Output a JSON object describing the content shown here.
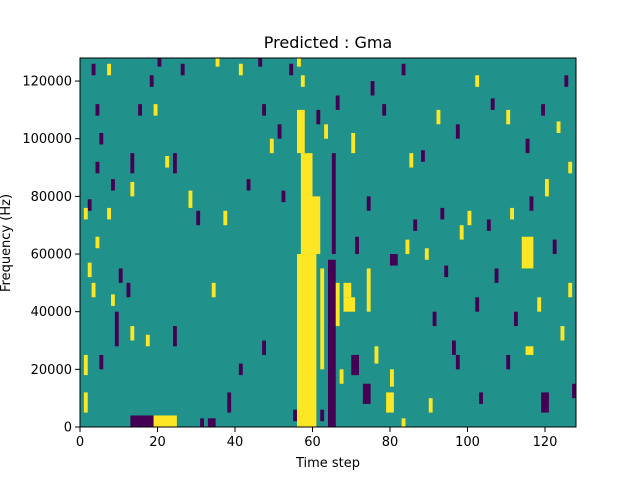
{
  "colors": {
    "background": "#21918c",
    "low": "#440154",
    "high": "#fde725"
  },
  "chart_data": {
    "type": "heatmap",
    "title": "Predicted : Gma",
    "xlabel": "Time step",
    "ylabel": "Frequency (Hz)",
    "xlim": [
      0,
      128
    ],
    "ylim": [
      0,
      128000
    ],
    "x_ticks": [
      0,
      20,
      40,
      60,
      80,
      100,
      120
    ],
    "y_ticks": [
      0,
      20000,
      40000,
      60000,
      80000,
      100000,
      120000
    ],
    "x_tick_labels": [
      "0",
      "20",
      "40",
      "60",
      "80",
      "100",
      "120"
    ],
    "y_tick_labels": [
      "0",
      "20000",
      "40000",
      "60000",
      "80000",
      "100000",
      "120000"
    ],
    "grid": false,
    "legend": "none",
    "values_legend": {
      "background": 0,
      "low": -1,
      "high": 1
    },
    "cells": [
      {
        "x0": 56,
        "x1": 61,
        "y0": 0,
        "y1": 60000,
        "value": 1
      },
      {
        "x0": 57,
        "x1": 60,
        "y0": 60000,
        "y1": 95000,
        "value": 1
      },
      {
        "x0": 56,
        "x1": 58,
        "y0": 95000,
        "y1": 110000,
        "value": 1
      },
      {
        "x0": 13,
        "x1": 19,
        "y0": 0,
        "y1": 4000,
        "value": -1
      },
      {
        "x0": 19,
        "x1": 25,
        "y0": 0,
        "y1": 4000,
        "value": 1
      },
      {
        "x0": 64,
        "x1": 66,
        "y0": 0,
        "y1": 58000,
        "value": -1
      },
      {
        "x0": 65,
        "x1": 66,
        "y0": 60000,
        "y1": 95000,
        "value": -1
      },
      {
        "x0": 60,
        "x1": 62,
        "y0": 60000,
        "y1": 80000,
        "value": 1
      },
      {
        "x0": 62,
        "x1": 63,
        "y0": 20000,
        "y1": 55000,
        "value": 1
      },
      {
        "x0": 66,
        "x1": 67,
        "y0": 35000,
        "y1": 50000,
        "value": 1
      },
      {
        "x0": 68,
        "x1": 71,
        "y0": 40000,
        "y1": 45000,
        "value": 1
      },
      {
        "x0": 68,
        "x1": 70,
        "y0": 45000,
        "y1": 50000,
        "value": 1
      },
      {
        "x0": 70,
        "x1": 72,
        "y0": 18000,
        "y1": 25000,
        "value": -1
      },
      {
        "x0": 73,
        "x1": 75,
        "y0": 8000,
        "y1": 15000,
        "value": -1
      },
      {
        "x0": 74,
        "x1": 75,
        "y0": 40000,
        "y1": 55000,
        "value": 1
      },
      {
        "x0": 79,
        "x1": 81,
        "y0": 5000,
        "y1": 12000,
        "value": 1
      },
      {
        "x0": 80,
        "x1": 82,
        "y0": 56000,
        "y1": 60000,
        "value": -1
      },
      {
        "x0": 114,
        "x1": 117,
        "y0": 55000,
        "y1": 66000,
        "value": 1
      },
      {
        "x0": 115,
        "x1": 117,
        "y0": 25000,
        "y1": 28000,
        "value": 1
      },
      {
        "x0": 119,
        "x1": 121,
        "y0": 5000,
        "y1": 12000,
        "value": -1
      },
      {
        "x0": 103,
        "x1": 104,
        "y0": 8000,
        "y1": 12000,
        "value": -1
      },
      {
        "x0": 110,
        "x1": 111,
        "y0": 20000,
        "y1": 25000,
        "value": -1
      },
      {
        "x0": 1,
        "x1": 2,
        "y0": 5000,
        "y1": 12000,
        "value": 1
      },
      {
        "x0": 1,
        "x1": 2,
        "y0": 18000,
        "y1": 25000,
        "value": 1
      },
      {
        "x0": 5,
        "x1": 6,
        "y0": 20000,
        "y1": 25000,
        "value": -1
      },
      {
        "x0": 9,
        "x1": 10,
        "y0": 28000,
        "y1": 40000,
        "value": -1
      },
      {
        "x0": 13,
        "x1": 14,
        "y0": 30000,
        "y1": 35000,
        "value": 1
      },
      {
        "x0": 17,
        "x1": 18,
        "y0": 28000,
        "y1": 32000,
        "value": 1
      },
      {
        "x0": 24,
        "x1": 25,
        "y0": 28000,
        "y1": 35000,
        "value": -1
      },
      {
        "x0": 31,
        "x1": 32,
        "y0": 0,
        "y1": 3000,
        "value": -1
      },
      {
        "x0": 33,
        "x1": 35,
        "y0": 0,
        "y1": 3000,
        "value": -1
      },
      {
        "x0": 34,
        "x1": 35,
        "y0": 45000,
        "y1": 50000,
        "value": 1
      },
      {
        "x0": 38,
        "x1": 39,
        "y0": 5000,
        "y1": 12000,
        "value": -1
      },
      {
        "x0": 41,
        "x1": 42,
        "y0": 18000,
        "y1": 22000,
        "value": -1
      },
      {
        "x0": 47,
        "x1": 48,
        "y0": 25000,
        "y1": 30000,
        "value": -1
      },
      {
        "x0": 52,
        "x1": 53,
        "y0": 78000,
        "y1": 82000,
        "value": -1
      },
      {
        "x0": 55,
        "x1": 56,
        "y0": 2000,
        "y1": 6000,
        "value": -1
      },
      {
        "x0": 62,
        "x1": 63,
        "y0": 2000,
        "y1": 6000,
        "value": -1
      },
      {
        "x0": 67,
        "x1": 68,
        "y0": 15000,
        "y1": 20000,
        "value": 1
      },
      {
        "x0": 71,
        "x1": 72,
        "y0": 60000,
        "y1": 66000,
        "value": -1
      },
      {
        "x0": 74,
        "x1": 75,
        "y0": 75000,
        "y1": 80000,
        "value": -1
      },
      {
        "x0": 76,
        "x1": 77,
        "y0": 22000,
        "y1": 28000,
        "value": 1
      },
      {
        "x0": 80,
        "x1": 81,
        "y0": 14000,
        "y1": 20000,
        "value": 1
      },
      {
        "x0": 83,
        "x1": 84,
        "y0": 0,
        "y1": 3000,
        "value": 1
      },
      {
        "x0": 84,
        "x1": 85,
        "y0": 60000,
        "y1": 65000,
        "value": 1
      },
      {
        "x0": 85,
        "x1": 86,
        "y0": 90000,
        "y1": 95000,
        "value": 1
      },
      {
        "x0": 90,
        "x1": 91,
        "y0": 5000,
        "y1": 10000,
        "value": 1
      },
      {
        "x0": 91,
        "x1": 92,
        "y0": 35000,
        "y1": 40000,
        "value": -1
      },
      {
        "x0": 94,
        "x1": 95,
        "y0": 52000,
        "y1": 56000,
        "value": -1
      },
      {
        "x0": 96,
        "x1": 97,
        "y0": 25000,
        "y1": 30000,
        "value": -1
      },
      {
        "x0": 97,
        "x1": 98,
        "y0": 20000,
        "y1": 25000,
        "value": -1
      },
      {
        "x0": 100,
        "x1": 101,
        "y0": 70000,
        "y1": 75000,
        "value": 1
      },
      {
        "x0": 102,
        "x1": 103,
        "y0": 40000,
        "y1": 45000,
        "value": -1
      },
      {
        "x0": 107,
        "x1": 108,
        "y0": 50000,
        "y1": 55000,
        "value": -1
      },
      {
        "x0": 112,
        "x1": 113,
        "y0": 35000,
        "y1": 40000,
        "value": -1
      },
      {
        "x0": 118,
        "x1": 119,
        "y0": 40000,
        "y1": 45000,
        "value": 1
      },
      {
        "x0": 122,
        "x1": 123,
        "y0": 60000,
        "y1": 65000,
        "value": -1
      },
      {
        "x0": 124,
        "x1": 125,
        "y0": 30000,
        "y1": 35000,
        "value": 1
      },
      {
        "x0": 126,
        "x1": 127,
        "y0": 45000,
        "y1": 50000,
        "value": 1
      },
      {
        "x0": 127,
        "x1": 128,
        "y0": 10000,
        "y1": 15000,
        "value": -1
      },
      {
        "x0": 3,
        "x1": 4,
        "y0": 122000,
        "y1": 126000,
        "value": -1
      },
      {
        "x0": 7,
        "x1": 8,
        "y0": 122000,
        "y1": 126000,
        "value": 1
      },
      {
        "x0": 4,
        "x1": 5,
        "y0": 108000,
        "y1": 112000,
        "value": -1
      },
      {
        "x0": 5,
        "x1": 6,
        "y0": 98000,
        "y1": 102000,
        "value": -1
      },
      {
        "x0": 4,
        "x1": 5,
        "y0": 88000,
        "y1": 92000,
        "value": -1
      },
      {
        "x0": 8,
        "x1": 9,
        "y0": 82000,
        "y1": 86000,
        "value": -1
      },
      {
        "x0": 2,
        "x1": 3,
        "y0": 75000,
        "y1": 79000,
        "value": -1
      },
      {
        "x0": 1,
        "x1": 2,
        "y0": 72000,
        "y1": 76000,
        "value": 1
      },
      {
        "x0": 7,
        "x1": 8,
        "y0": 72000,
        "y1": 76000,
        "value": 1
      },
      {
        "x0": 4,
        "x1": 5,
        "y0": 62000,
        "y1": 66000,
        "value": 1
      },
      {
        "x0": 2,
        "x1": 3,
        "y0": 52000,
        "y1": 57000,
        "value": 1
      },
      {
        "x0": 3,
        "x1": 4,
        "y0": 45000,
        "y1": 50000,
        "value": 1
      },
      {
        "x0": 8,
        "x1": 9,
        "y0": 42000,
        "y1": 46000,
        "value": 1
      },
      {
        "x0": 10,
        "x1": 11,
        "y0": 50000,
        "y1": 55000,
        "value": -1
      },
      {
        "x0": 12,
        "x1": 13,
        "y0": 45000,
        "y1": 50000,
        "value": -1
      },
      {
        "x0": 13,
        "x1": 14,
        "y0": 88000,
        "y1": 95000,
        "value": -1
      },
      {
        "x0": 13,
        "x1": 14,
        "y0": 80000,
        "y1": 85000,
        "value": 1
      },
      {
        "x0": 15,
        "x1": 16,
        "y0": 108000,
        "y1": 112000,
        "value": -1
      },
      {
        "x0": 18,
        "x1": 19,
        "y0": 118000,
        "y1": 122000,
        "value": -1
      },
      {
        "x0": 20,
        "x1": 21,
        "y0": 125000,
        "y1": 128000,
        "value": -1
      },
      {
        "x0": 19,
        "x1": 20,
        "y0": 108000,
        "y1": 112000,
        "value": 1
      },
      {
        "x0": 22,
        "x1": 23,
        "y0": 90000,
        "y1": 94000,
        "value": 1
      },
      {
        "x0": 24,
        "x1": 25,
        "y0": 88000,
        "y1": 95000,
        "value": -1
      },
      {
        "x0": 26,
        "x1": 27,
        "y0": 122000,
        "y1": 126000,
        "value": -1
      },
      {
        "x0": 28,
        "x1": 29,
        "y0": 76000,
        "y1": 82000,
        "value": 1
      },
      {
        "x0": 30,
        "x1": 31,
        "y0": 70000,
        "y1": 75000,
        "value": -1
      },
      {
        "x0": 35,
        "x1": 36,
        "y0": 125000,
        "y1": 128000,
        "value": 1
      },
      {
        "x0": 37,
        "x1": 38,
        "y0": 70000,
        "y1": 75000,
        "value": 1
      },
      {
        "x0": 41,
        "x1": 42,
        "y0": 122000,
        "y1": 126000,
        "value": 1
      },
      {
        "x0": 43,
        "x1": 44,
        "y0": 82000,
        "y1": 86000,
        "value": -1
      },
      {
        "x0": 46,
        "x1": 47,
        "y0": 125000,
        "y1": 128000,
        "value": -1
      },
      {
        "x0": 47,
        "x1": 48,
        "y0": 108000,
        "y1": 112000,
        "value": -1
      },
      {
        "x0": 49,
        "x1": 50,
        "y0": 95000,
        "y1": 100000,
        "value": 1
      },
      {
        "x0": 51,
        "x1": 52,
        "y0": 100000,
        "y1": 105000,
        "value": -1
      },
      {
        "x0": 54,
        "x1": 55,
        "y0": 122000,
        "y1": 126000,
        "value": -1
      },
      {
        "x0": 56,
        "x1": 57,
        "y0": 125000,
        "y1": 128000,
        "value": 1
      },
      {
        "x0": 57,
        "x1": 58,
        "y0": 118000,
        "y1": 122000,
        "value": 1
      },
      {
        "x0": 61,
        "x1": 62,
        "y0": 105000,
        "y1": 110000,
        "value": -1
      },
      {
        "x0": 63,
        "x1": 64,
        "y0": 100000,
        "y1": 105000,
        "value": 1
      },
      {
        "x0": 66,
        "x1": 67,
        "y0": 110000,
        "y1": 115000,
        "value": -1
      },
      {
        "x0": 70,
        "x1": 71,
        "y0": 95000,
        "y1": 102000,
        "value": 1
      },
      {
        "x0": 75,
        "x1": 76,
        "y0": 115000,
        "y1": 120000,
        "value": -1
      },
      {
        "x0": 78,
        "x1": 79,
        "y0": 108000,
        "y1": 112000,
        "value": -1
      },
      {
        "x0": 83,
        "x1": 84,
        "y0": 122000,
        "y1": 126000,
        "value": -1
      },
      {
        "x0": 88,
        "x1": 89,
        "y0": 92000,
        "y1": 96000,
        "value": -1
      },
      {
        "x0": 92,
        "x1": 93,
        "y0": 105000,
        "y1": 110000,
        "value": 1
      },
      {
        "x0": 97,
        "x1": 98,
        "y0": 100000,
        "y1": 105000,
        "value": -1
      },
      {
        "x0": 102,
        "x1": 103,
        "y0": 118000,
        "y1": 122000,
        "value": 1
      },
      {
        "x0": 106,
        "x1": 107,
        "y0": 110000,
        "y1": 114000,
        "value": -1
      },
      {
        "x0": 110,
        "x1": 111,
        "y0": 105000,
        "y1": 110000,
        "value": 1
      },
      {
        "x0": 115,
        "x1": 116,
        "y0": 95000,
        "y1": 100000,
        "value": -1
      },
      {
        "x0": 119,
        "x1": 120,
        "y0": 108000,
        "y1": 112000,
        "value": -1
      },
      {
        "x0": 123,
        "x1": 124,
        "y0": 102000,
        "y1": 106000,
        "value": 1
      },
      {
        "x0": 125,
        "x1": 126,
        "y0": 118000,
        "y1": 122000,
        "value": -1
      },
      {
        "x0": 126,
        "x1": 127,
        "y0": 88000,
        "y1": 92000,
        "value": 1
      },
      {
        "x0": 120,
        "x1": 121,
        "y0": 80000,
        "y1": 86000,
        "value": 1
      },
      {
        "x0": 116,
        "x1": 117,
        "y0": 75000,
        "y1": 80000,
        "value": -1
      },
      {
        "x0": 111,
        "x1": 112,
        "y0": 72000,
        "y1": 76000,
        "value": 1
      },
      {
        "x0": 105,
        "x1": 106,
        "y0": 68000,
        "y1": 72000,
        "value": -1
      },
      {
        "x0": 98,
        "x1": 99,
        "y0": 65000,
        "y1": 70000,
        "value": 1
      },
      {
        "x0": 93,
        "x1": 94,
        "y0": 72000,
        "y1": 76000,
        "value": -1
      },
      {
        "x0": 89,
        "x1": 90,
        "y0": 58000,
        "y1": 62000,
        "value": 1
      },
      {
        "x0": 86,
        "x1": 87,
        "y0": 68000,
        "y1": 72000,
        "value": -1
      }
    ]
  }
}
